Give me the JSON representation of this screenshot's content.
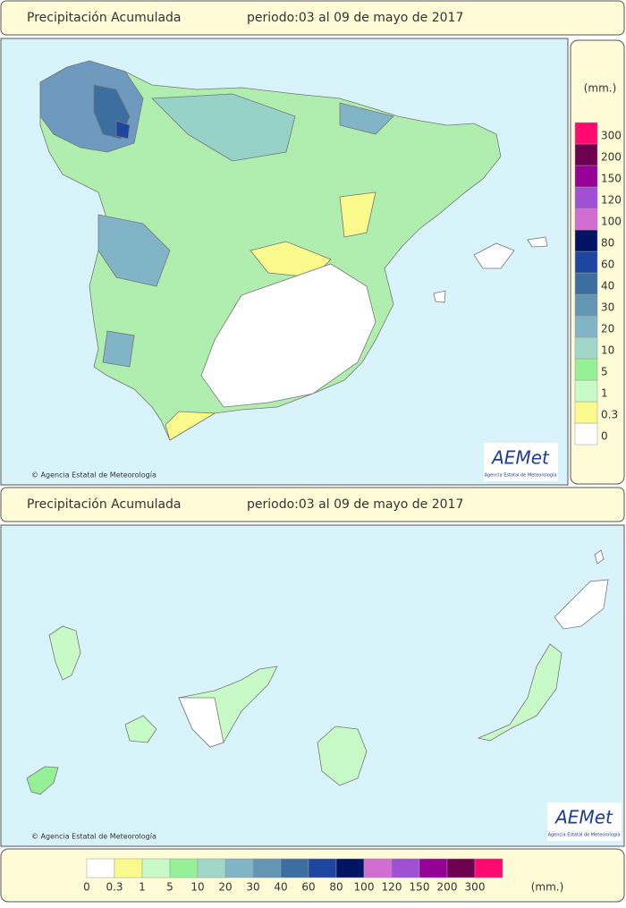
{
  "panels": [
    {
      "title": "Precipitación Acumulada",
      "period": "periodo:03 al 09 de mayo de 2017",
      "credit": "© Agencia Estatal de Meteorología",
      "logo": "AEMet",
      "logo_subtitle": "Agencia Estatal de Meteorología"
    },
    {
      "title": "Precipitación Acumulada",
      "period": "periodo:03 al 09 de mayo de 2017",
      "credit": "© Agencia Estatal de Meteorología",
      "logo": "AEMet",
      "logo_subtitle": "Agencia Estatal de Meteorología"
    }
  ],
  "legend": {
    "unit": "(mm.)",
    "levels": [
      {
        "label": "0",
        "color": "#ffffff"
      },
      {
        "label": "0.3",
        "color": "#fafa8c"
      },
      {
        "label": "1",
        "color": "#c8fac8"
      },
      {
        "label": "5",
        "color": "#96f096"
      },
      {
        "label": "10",
        "color": "#a0d7c8"
      },
      {
        "label": "20",
        "color": "#82b4c8"
      },
      {
        "label": "30",
        "color": "#6496b4"
      },
      {
        "label": "40",
        "color": "#3c6ea0"
      },
      {
        "label": "60",
        "color": "#1e46a0"
      },
      {
        "label": "80",
        "color": "#001464"
      },
      {
        "label": "100",
        "color": "#d26ed2"
      },
      {
        "label": "120",
        "color": "#a050d2"
      },
      {
        "label": "150",
        "color": "#960096"
      },
      {
        "label": "200",
        "color": "#6e0050"
      },
      {
        "label": "300",
        "color": "#ff0a6e"
      }
    ]
  }
}
